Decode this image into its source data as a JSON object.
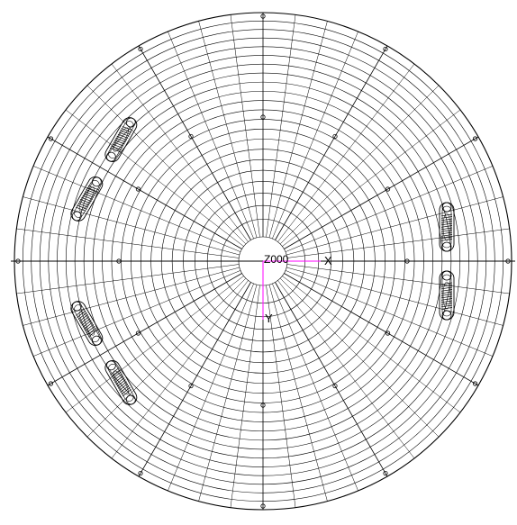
{
  "view": {
    "origin_label": "Z000",
    "x_axis_label": "X",
    "y_axis_label": "Y",
    "axis_color": "#ff00ff",
    "mesh_color": "#000000",
    "background": "#ffffff"
  },
  "mesh": {
    "radial_divisions": 48,
    "ring_count": 22,
    "marker_count": 12
  },
  "spring_assemblies": [
    {
      "name": "spring-pair-upper-left",
      "angle_deg": -150
    },
    {
      "name": "spring-pair-right",
      "angle_deg": 0
    },
    {
      "name": "spring-pair-lower-left",
      "angle_deg": 150
    }
  ]
}
